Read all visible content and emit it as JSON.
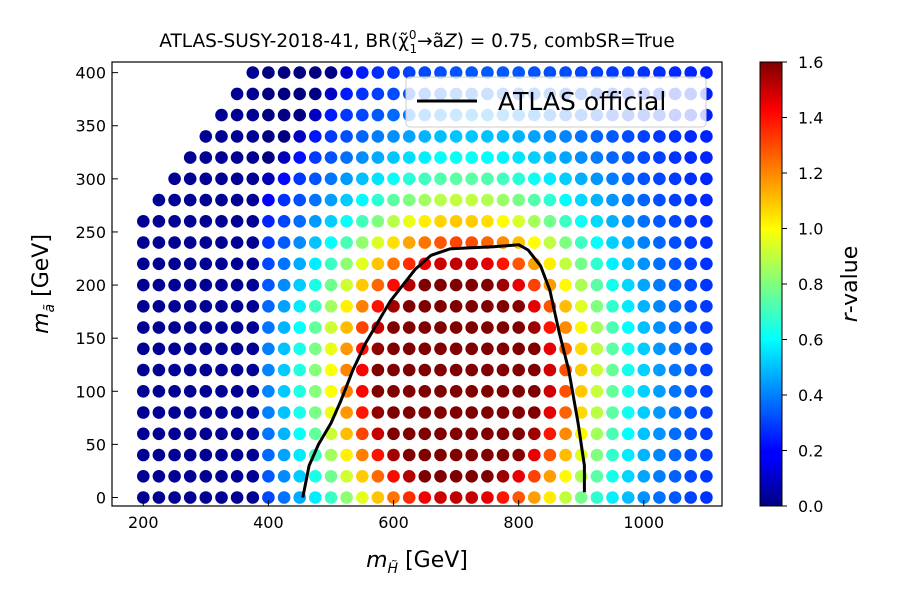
{
  "chart_data": {
    "type": "scatter",
    "title": "ATLAS-SUSY-2018-41, BR(χ̃⁰₁→ãZ) = 0.75, combSR=True",
    "title_parts": {
      "prefix": "ATLAS-SUSY-2018-41, BR(",
      "chi": "χ̃",
      "chi_sup": "0",
      "chi_sub": "1",
      "arrow_a": "→ã",
      "Z": "Z",
      "suffix": ") = 0.75, combSR=True"
    },
    "xlabel": "m_H̃ [GeV]",
    "xlabel_parts": {
      "m": "m",
      "sub": "H̃",
      "unit": " [GeV]"
    },
    "ylabel": "m_ã [GeV]",
    "ylabel_parts": {
      "m": "m",
      "sub": "ã",
      "unit": " [GeV]"
    },
    "colorbar_label": "r-value",
    "colorbar_label_parts": {
      "r": "r",
      "rest": "-value"
    },
    "xlim": [
      150,
      1125
    ],
    "ylim": [
      -8,
      410
    ],
    "x_ticks": [
      "200",
      "400",
      "600",
      "800",
      "1000"
    ],
    "x_tick_values": [
      200,
      400,
      600,
      800,
      1000
    ],
    "y_ticks": [
      "0",
      "50",
      "100",
      "150",
      "200",
      "250",
      "300",
      "350",
      "400"
    ],
    "y_tick_values": [
      0,
      50,
      100,
      150,
      200,
      250,
      300,
      350,
      400
    ],
    "colorbar_ticks": [
      "0.0",
      "0.2",
      "0.4",
      "0.6",
      "0.8",
      "1.0",
      "1.2",
      "1.4",
      "1.6"
    ],
    "colorbar_tick_values": [
      0.0,
      0.2,
      0.4,
      0.6,
      0.8,
      1.0,
      1.2,
      1.4,
      1.6
    ],
    "colorbar_range": [
      0.0,
      1.6
    ],
    "colormap": "jet",
    "grid": false,
    "legend": {
      "entries": [
        "ATLAS official"
      ],
      "placement": "top-right",
      "line_color": "#000000"
    },
    "scatter_grid": {
      "x_start": 200,
      "x_step": 25,
      "x_end": 1100,
      "y_start": 0,
      "y_step": 20,
      "y_end": 400,
      "boundary_slope": 0.833,
      "boundary_offset": 100
    },
    "atlas_official_curve": {
      "x": [
        455,
        465,
        480,
        500,
        515,
        535,
        555,
        575,
        595,
        615,
        635,
        660,
        690,
        720,
        760,
        800,
        815,
        835,
        850,
        865,
        880,
        895,
        905,
        905
      ],
      "y": [
        0,
        30,
        50,
        70,
        90,
        120,
        145,
        165,
        185,
        200,
        215,
        228,
        234,
        235,
        236,
        238,
        233,
        218,
        195,
        155,
        120,
        70,
        30,
        5
      ]
    }
  }
}
